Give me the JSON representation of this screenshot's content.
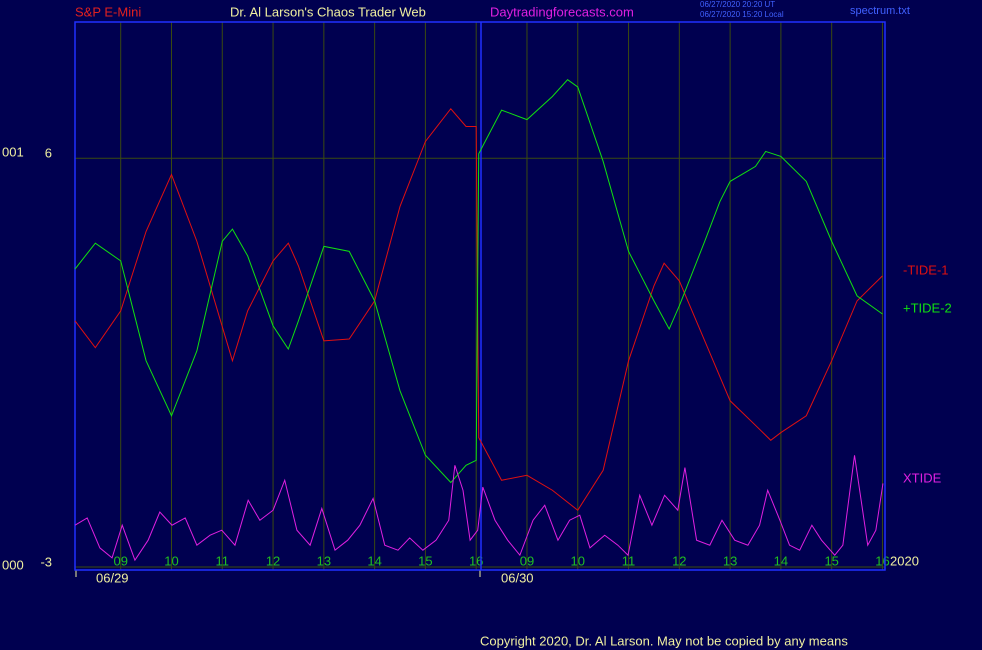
{
  "chart_data": {
    "type": "line",
    "title": "Dr. Al Larson's Chaos Trader Web",
    "symbol": "S&P E-Mini",
    "website": "Daytradingforecasts.com",
    "timestamps": [
      "06/27/2020 20:20 UT",
      "06/27/2020 15:20 Local"
    ],
    "file": "spectrum.txt",
    "year": "2020",
    "copyright": "Copyright 2020, Dr. Al Larson. May not be copied by any means",
    "y_side_labels": [
      "001",
      "000"
    ],
    "dates": [
      "06/29",
      "06/30"
    ],
    "xlim": [
      8.1,
      24.05
    ],
    "xticks": [
      {
        "value": 9,
        "label": "09"
      },
      10,
      11,
      12,
      13,
      14,
      15,
      16,
      {
        "value": 17,
        "label": "09"
      },
      {
        "value": 18,
        "label": "10"
      },
      {
        "value": 19,
        "label": "11"
      },
      {
        "value": 20,
        "label": "12"
      },
      {
        "value": 21,
        "label": "13"
      },
      {
        "value": 22,
        "label": "14"
      },
      {
        "value": 23,
        "label": "15"
      },
      {
        "value": 24,
        "label": "16"
      }
    ],
    "ylim": [
      -3,
      9
    ],
    "yticks": [
      -3,
      6
    ],
    "grid": true,
    "series": [
      {
        "name": "-TIDE-1",
        "color": "#e01010",
        "x": [
          8.1,
          8.5,
          9,
          9.5,
          10,
          10.5,
          11.2,
          11.5,
          12,
          12.3,
          12.5,
          13,
          13.5,
          14,
          14.5,
          15,
          15.5,
          15.8,
          16.0,
          16.05,
          16.5,
          17,
          17.5,
          18,
          18.5,
          19,
          19.5,
          19.7,
          20,
          20.5,
          21,
          21.5,
          21.8,
          22,
          22.5,
          23,
          23.5,
          24
        ],
        "values": [
          2.42,
          1.83,
          2.64,
          4.39,
          5.64,
          4.17,
          1.54,
          2.64,
          3.74,
          4.13,
          3.63,
          1.98,
          2.02,
          2.86,
          4.94,
          6.37,
          7.09,
          6.7,
          6.7,
          -0.15,
          -1.09,
          -0.98,
          -1.31,
          -1.75,
          -0.87,
          1.54,
          3.19,
          3.69,
          3.3,
          1.98,
          0.66,
          0.12,
          -0.21,
          -0.04,
          0.33,
          1.54,
          2.86,
          3.41
        ]
      },
      {
        "name": "+TIDE-2",
        "color": "#10e010",
        "x": [
          8.1,
          8.5,
          9,
          9.5,
          10,
          10.5,
          11,
          11.2,
          11.5,
          12,
          12.3,
          12.5,
          13,
          13.5,
          14,
          14.5,
          15,
          15.5,
          15.8,
          16.0,
          16.05,
          16.5,
          17,
          17.5,
          17.8,
          18,
          18.5,
          19,
          19.5,
          19.8,
          20,
          20.5,
          20.8,
          21,
          21.5,
          21.7,
          22,
          22.5,
          23,
          23.5,
          24
        ],
        "values": [
          3.56,
          4.13,
          3.74,
          1.54,
          0.33,
          1.76,
          4.17,
          4.44,
          3.85,
          2.31,
          1.8,
          2.42,
          4.06,
          3.95,
          2.86,
          0.88,
          -0.54,
          -1.14,
          -0.76,
          -0.65,
          6.1,
          7.06,
          6.85,
          7.36,
          7.73,
          7.57,
          5.93,
          3.95,
          2.86,
          2.24,
          2.75,
          4.17,
          5.05,
          5.49,
          5.82,
          6.15,
          6.04,
          5.49,
          4.17,
          2.97,
          2.57
        ]
      },
      {
        "name": "XTIDE",
        "color": "#e020e0",
        "x": [
          8.1,
          8.34,
          8.59,
          8.83,
          9.03,
          9.28,
          9.54,
          9.77,
          10.01,
          10.27,
          10.5,
          10.76,
          10.99,
          11.25,
          11.51,
          11.74,
          12.0,
          12.23,
          12.47,
          12.73,
          12.96,
          13.22,
          13.47,
          13.71,
          13.97,
          14.2,
          14.46,
          14.69,
          14.95,
          15.21,
          15.46,
          15.58,
          15.74,
          15.88,
          16.03,
          16.13,
          16.37,
          16.62,
          16.86,
          17.12,
          17.35,
          17.61,
          17.84,
          18.04,
          18.24,
          18.53,
          18.79,
          18.99,
          19.22,
          19.46,
          19.71,
          19.97,
          20.11,
          20.34,
          20.6,
          20.84,
          21.09,
          21.35,
          21.58,
          21.74,
          21.98,
          22.17,
          22.37,
          22.61,
          22.8,
          23.06,
          23.22,
          23.45,
          23.71,
          23.87,
          24.01
        ],
        "values": [
          -2.08,
          -1.92,
          -2.58,
          -2.8,
          -2.08,
          -2.85,
          -2.41,
          -1.79,
          -2.08,
          -1.92,
          -2.52,
          -2.3,
          -2.19,
          -2.52,
          -1.53,
          -1.97,
          -1.75,
          -1.09,
          -2.19,
          -2.52,
          -1.71,
          -2.63,
          -2.41,
          -2.08,
          -1.49,
          -2.52,
          -2.63,
          -2.36,
          -2.63,
          -2.41,
          -1.97,
          -0.76,
          -1.31,
          -2.41,
          -2.19,
          -1.24,
          -1.97,
          -2.41,
          -2.74,
          -1.97,
          -1.64,
          -2.41,
          -1.97,
          -1.86,
          -2.58,
          -2.3,
          -2.52,
          -2.74,
          -1.42,
          -2.08,
          -1.42,
          -1.75,
          -0.81,
          -2.41,
          -2.52,
          -1.97,
          -2.41,
          -2.52,
          -2.08,
          -1.31,
          -1.97,
          -2.52,
          -2.63,
          -2.08,
          -2.41,
          -2.74,
          -2.52,
          -0.54,
          -2.52,
          -2.19,
          -1.16
        ]
      }
    ]
  }
}
